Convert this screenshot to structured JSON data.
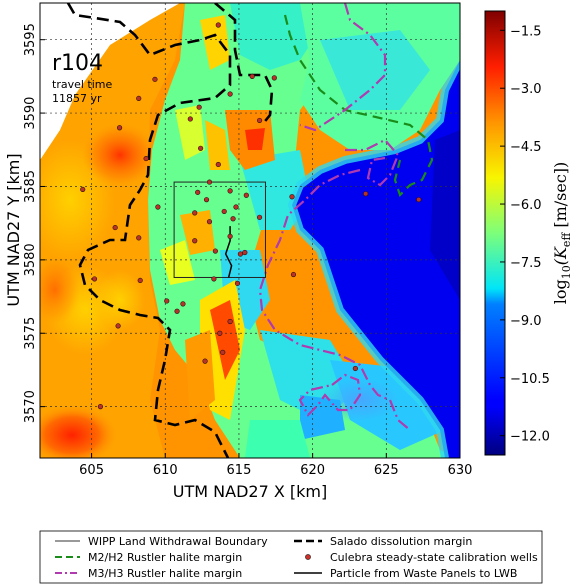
{
  "chart_data": {
    "type": "heatmap",
    "panel_label": "r104",
    "annotation_line1": "travel time",
    "annotation_line2": "11857 yr",
    "xlabel": "UTM NAD27 X [km]",
    "ylabel": "UTM NAD27 Y [km]",
    "xlim": [
      601.5,
      630
    ],
    "ylim": [
      3566.5,
      3597.5
    ],
    "x_ticks": [
      "605",
      "610",
      "615",
      "620",
      "625",
      "630"
    ],
    "x_tick_values": [
      605,
      610,
      615,
      620,
      625,
      630
    ],
    "y_ticks": [
      "3570",
      "3575",
      "3580",
      "3585",
      "3590",
      "3595"
    ],
    "y_tick_values": [
      3570,
      3575,
      3580,
      3585,
      3590,
      3595
    ],
    "grid": true,
    "colorbar": {
      "label": "log10(Keff [m/sec])",
      "label_base": "log",
      "label_sub": "10",
      "label_paren": "(K",
      "label_k_sub": "eff",
      "label_units": " [m/sec])",
      "ticks": [
        "−1.5",
        "−3.0",
        "−4.5",
        "−6.0",
        "−7.5",
        "−9.0",
        "−10.5",
        "−12.0"
      ],
      "tick_values": [
        -1.5,
        -3.0,
        -4.5,
        -6.0,
        -7.5,
        -9.0,
        -10.5,
        -12.0
      ],
      "vmin": -12.5,
      "vmax": -1.0,
      "colormap": "jet"
    },
    "wipp_boundary": {
      "x": [
        610.6,
        616.8
      ],
      "y": [
        3578.8,
        3585.3
      ]
    },
    "wells": [
      [
        605.6,
        3570.0
      ],
      [
        605.2,
        3578.7
      ],
      [
        606.8,
        3575.5
      ],
      [
        604.4,
        3584.8
      ],
      [
        606.6,
        3582.2
      ],
      [
        606.9,
        3589.0
      ],
      [
        608.2,
        3591.0
      ],
      [
        608.2,
        3581.5
      ],
      [
        608.7,
        3586.9
      ],
      [
        609.3,
        3592.3
      ],
      [
        609.5,
        3583.6
      ],
      [
        612.3,
        3590.4
      ],
      [
        611.7,
        3589.6
      ],
      [
        612.4,
        3587.6
      ],
      [
        613.6,
        3586.5
      ],
      [
        613.6,
        3596.0
      ],
      [
        614.4,
        3591.3
      ],
      [
        615.9,
        3592.5
      ],
      [
        616.4,
        3589.5
      ],
      [
        617.4,
        3592.4
      ],
      [
        612.2,
        3584.6
      ],
      [
        612.0,
        3583.2
      ],
      [
        612.8,
        3584.1
      ],
      [
        613.0,
        3585.3
      ],
      [
        614.4,
        3584.7
      ],
      [
        614.8,
        3583.6
      ],
      [
        615.5,
        3584.4
      ],
      [
        614.0,
        3583.3
      ],
      [
        613.0,
        3582.6
      ],
      [
        614.6,
        3582.8
      ],
      [
        612.0,
        3581.3
      ],
      [
        613.4,
        3580.6
      ],
      [
        615.1,
        3580.4
      ],
      [
        615.4,
        3580.5
      ],
      [
        614.4,
        3581.6
      ],
      [
        616.4,
        3582.9
      ],
      [
        618.6,
        3584.3
      ],
      [
        613.3,
        3578.7
      ],
      [
        614.9,
        3578.4
      ],
      [
        611.2,
        3577.0
      ],
      [
        610.8,
        3576.5
      ],
      [
        614.4,
        3575.8
      ],
      [
        613.7,
        3575.0
      ],
      [
        613.9,
        3573.7
      ],
      [
        612.7,
        3573.1
      ],
      [
        610.1,
        3577.2
      ],
      [
        608.3,
        3578.6
      ],
      [
        622.9,
        3572.6
      ],
      [
        618.7,
        3579.0
      ],
      [
        623.6,
        3584.5
      ],
      [
        627.2,
        3584.1
      ]
    ],
    "legend": {
      "items": [
        "WIPP Land Withdrawal Boundary",
        "Salado dissolution margin",
        "M2/H2 Rustler halite margin",
        "Culebra steady-state calibration wells",
        "M3/H3 Rustler halite margin",
        "Particle from Waste Panels to LWB"
      ],
      "placement": "below plot"
    }
  }
}
